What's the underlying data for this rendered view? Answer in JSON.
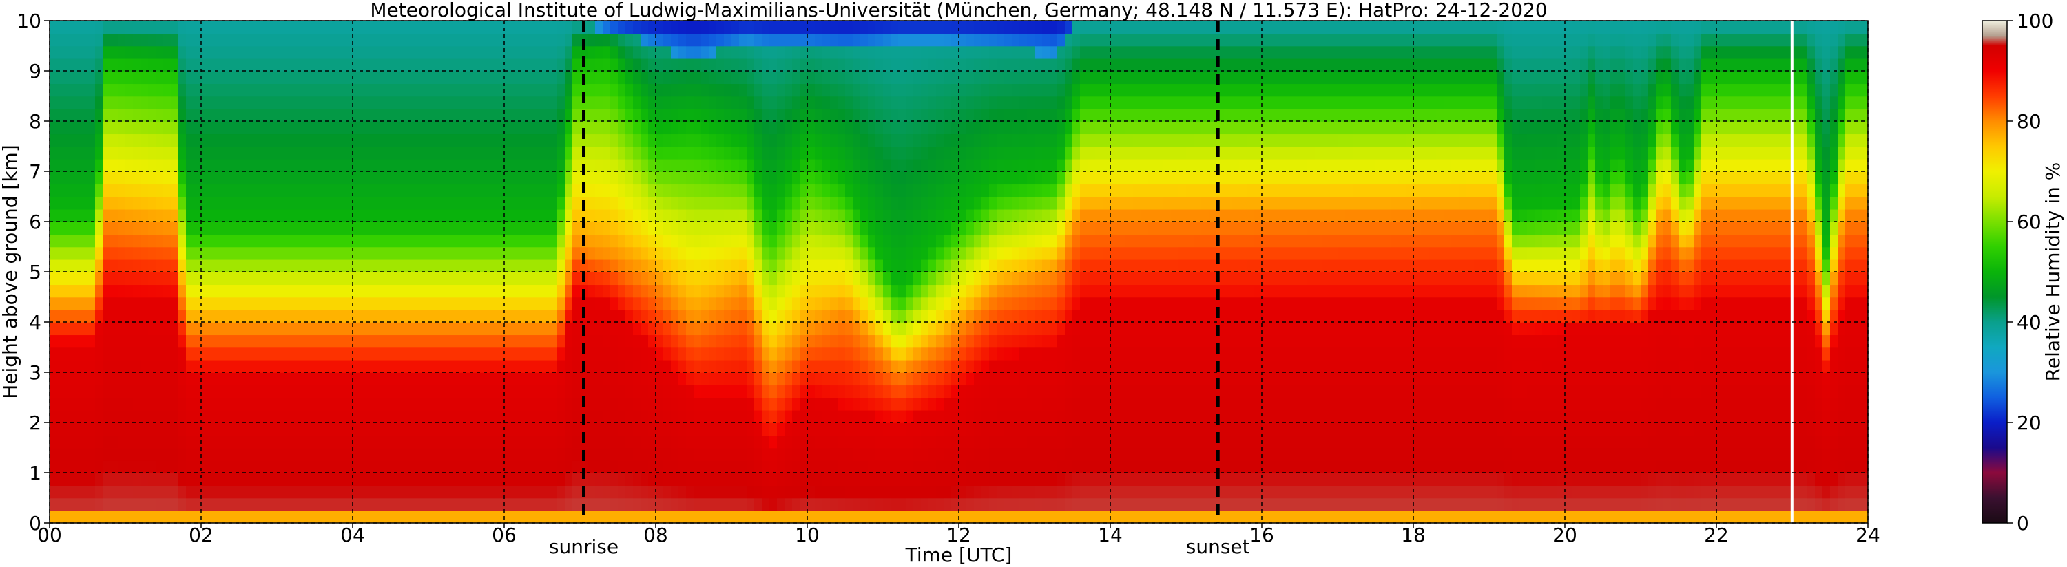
{
  "chart_data": {
    "type": "heatmap",
    "title": "Meteorological Institute of Ludwig-Maximilians-Universität (München, Germany; 48.148 N / 11.573 E):    HatPro: 24-12-2020",
    "xlabel": "Time [UTC]",
    "ylabel": "Height above ground [km]",
    "xlim": [
      0,
      24
    ],
    "ylim": [
      0,
      10
    ],
    "x_ticks": [
      "00",
      "02",
      "04",
      "06",
      "08",
      "10",
      "12",
      "14",
      "16",
      "18",
      "20",
      "22",
      "24"
    ],
    "y_ticks": [
      "0",
      "1",
      "2",
      "3",
      "4",
      "5",
      "6",
      "7",
      "8",
      "9",
      "10"
    ],
    "grid": true,
    "colorbar": {
      "label": "Relative Humidity in %",
      "range": [
        0,
        100
      ],
      "ticks": [
        "0",
        "20",
        "40",
        "60",
        "80",
        "100"
      ],
      "stops": [
        {
          "value": 0,
          "color": "#1a0a14"
        },
        {
          "value": 5,
          "color": "#3a1030"
        },
        {
          "value": 10,
          "color": "#8c0a3c"
        },
        {
          "value": 15,
          "color": "#1a0a8c"
        },
        {
          "value": 20,
          "color": "#0a1ec8"
        },
        {
          "value": 25,
          "color": "#1060e0"
        },
        {
          "value": 30,
          "color": "#1a96dc"
        },
        {
          "value": 35,
          "color": "#10a8c0"
        },
        {
          "value": 40,
          "color": "#0aa08c"
        },
        {
          "value": 45,
          "color": "#00962a"
        },
        {
          "value": 50,
          "color": "#0ab40a"
        },
        {
          "value": 55,
          "color": "#30d000"
        },
        {
          "value": 60,
          "color": "#7ae000"
        },
        {
          "value": 65,
          "color": "#c8ec00"
        },
        {
          "value": 70,
          "color": "#f0f000"
        },
        {
          "value": 75,
          "color": "#ffc800"
        },
        {
          "value": 80,
          "color": "#ff8c00"
        },
        {
          "value": 85,
          "color": "#ff3c00"
        },
        {
          "value": 90,
          "color": "#f00000"
        },
        {
          "value": 95,
          "color": "#d20000"
        },
        {
          "value": 97,
          "color": "#b4a090"
        },
        {
          "value": 100,
          "color": "#f0f0e0"
        }
      ]
    },
    "annotations": [
      {
        "label": "sunrise",
        "x": 7.05
      },
      {
        "label": "sunset",
        "x": 15.42
      }
    ],
    "data_gap_x": 22.98,
    "approx_profiles": [
      {
        "t": 0.0,
        "h50": 6.2,
        "h80": 4.3,
        "h90": 3.6,
        "h30": null
      },
      {
        "t": 0.6,
        "h50": 6.2,
        "h80": 4.3,
        "h90": 3.6,
        "h30": null
      },
      {
        "t": 0.75,
        "h50": 9.3,
        "h80": 6.0,
        "h90": 4.6,
        "h30": null
      },
      {
        "t": 1.65,
        "h50": 9.2,
        "h80": 5.8,
        "h90": 4.5,
        "h30": null
      },
      {
        "t": 1.8,
        "h50": 6.0,
        "h80": 3.9,
        "h90": 3.0,
        "h30": null
      },
      {
        "t": 6.7,
        "h50": 6.0,
        "h80": 3.9,
        "h90": 3.0,
        "h30": null
      },
      {
        "t": 6.95,
        "h50": 9.3,
        "h80": 5.5,
        "h90": 4.6,
        "h30": null
      },
      {
        "t": 7.4,
        "h50": 9.4,
        "h80": 5.3,
        "h90": 4.4,
        "h30": 9.8
      },
      {
        "t": 8.0,
        "h50": 7.8,
        "h80": 4.8,
        "h90": 3.4,
        "h30": 9.5
      },
      {
        "t": 8.5,
        "h50": 8.0,
        "h80": 4.0,
        "h90": 2.6,
        "h30": 9.2
      },
      {
        "t": 9.2,
        "h50": 7.5,
        "h80": 4.6,
        "h90": 2.6,
        "h30": 9.6
      },
      {
        "t": 9.5,
        "h50": 6.0,
        "h80": 3.0,
        "h90": 1.5,
        "h30": 9.5
      },
      {
        "t": 10.0,
        "h50": 7.5,
        "h80": 3.8,
        "h90": 2.6,
        "h30": 9.5
      },
      {
        "t": 10.5,
        "h50": 6.8,
        "h80": 4.2,
        "h90": 2.3,
        "h30": 9.4
      },
      {
        "t": 11.2,
        "h50": 4.6,
        "h80": 3.0,
        "h90": 2.0,
        "h30": 9.6
      },
      {
        "t": 11.8,
        "h50": 5.8,
        "h80": 3.6,
        "h90": 2.4,
        "h30": 9.6
      },
      {
        "t": 12.5,
        "h50": 6.8,
        "h80": 4.6,
        "h90": 3.3,
        "h30": 9.5
      },
      {
        "t": 13.3,
        "h50": 7.0,
        "h80": 5.0,
        "h90": 3.5,
        "h30": 9.3
      },
      {
        "t": 13.6,
        "h50": 8.7,
        "h80": 6.1,
        "h90": 4.4,
        "h30": null
      },
      {
        "t": 19.1,
        "h50": 8.7,
        "h80": 6.2,
        "h90": 4.4,
        "h30": null
      },
      {
        "t": 19.3,
        "h50": 6.2,
        "h80": 4.6,
        "h90": 3.8,
        "h30": null
      },
      {
        "t": 20.2,
        "h50": 6.4,
        "h80": 4.5,
        "h90": 3.9,
        "h30": null
      },
      {
        "t": 20.35,
        "h50": 7.8,
        "h80": 4.8,
        "h90": 3.9,
        "h30": null
      },
      {
        "t": 20.5,
        "h50": 6.6,
        "h80": 4.6,
        "h90": 3.9,
        "h30": null
      },
      {
        "t": 20.7,
        "h50": 7.5,
        "h80": 4.8,
        "h90": 3.9,
        "h30": null
      },
      {
        "t": 21.0,
        "h50": 6.3,
        "h80": 4.5,
        "h90": 3.9,
        "h30": null
      },
      {
        "t": 21.3,
        "h50": 8.9,
        "h80": 6.2,
        "h90": 4.4,
        "h30": null
      },
      {
        "t": 21.6,
        "h50": 6.8,
        "h80": 5.2,
        "h90": 4.2,
        "h30": null
      },
      {
        "t": 21.85,
        "h50": 9.0,
        "h80": 6.2,
        "h90": 4.4,
        "h30": null
      },
      {
        "t": 23.2,
        "h50": 9.0,
        "h80": 6.2,
        "h90": 4.4,
        "h30": null
      },
      {
        "t": 23.45,
        "h50": 5.5,
        "h80": 3.8,
        "h90": 3.0,
        "h30": null
      },
      {
        "t": 23.7,
        "h50": 9.0,
        "h80": 6.2,
        "h90": 4.4,
        "h30": null
      },
      {
        "t": 24.0,
        "h50": 9.0,
        "h80": 6.2,
        "h90": 4.4,
        "h30": null
      }
    ]
  }
}
